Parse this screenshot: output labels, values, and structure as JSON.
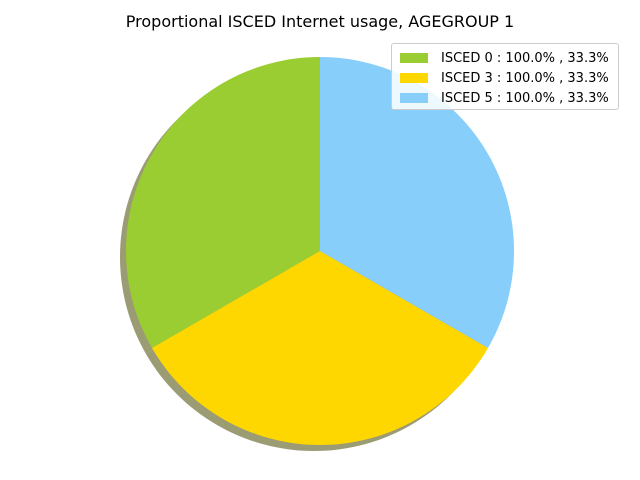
{
  "chart_data": {
    "type": "pie",
    "title": "Proportional ISCED Internet usage, AGEGROUP 1",
    "legend_position": "top-right",
    "shadow": true,
    "start_angle_deg": 90,
    "direction": "counterclockwise",
    "slices": [
      {
        "label": "ISCED 0 : 100.0% , 33.3%",
        "value": 33.3,
        "color": "#9acd32"
      },
      {
        "label": "ISCED 3 : 100.0% , 33.3%",
        "value": 33.3,
        "color": "#ffd700"
      },
      {
        "label": "ISCED 5 : 100.0% , 33.3%",
        "value": 33.3,
        "color": "#87cefa"
      }
    ]
  }
}
